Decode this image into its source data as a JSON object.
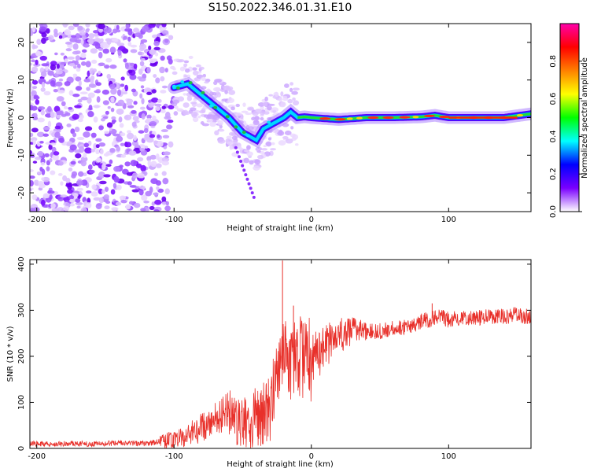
{
  "figure": {
    "title": "S150.2022.346.01.31.E10"
  },
  "chart_data": [
    {
      "type": "heatmap",
      "panel": "spectrogram",
      "xlabel": "Height of straight line (km)",
      "ylabel": "Frequency (Hz)",
      "xlim": [
        -205,
        160
      ],
      "ylim": [
        -25,
        25
      ],
      "xticks": [
        -200,
        -100,
        0,
        100
      ],
      "yticks": [
        -20,
        -10,
        0,
        10,
        20
      ],
      "ridge_x": [
        -100,
        -90,
        -80,
        -70,
        -60,
        -50,
        -45,
        -40,
        -35,
        -30,
        -25,
        -20,
        -15,
        -10,
        -5,
        0,
        20,
        40,
        60,
        80,
        90,
        100,
        120,
        140,
        160
      ],
      "ridge_freq": [
        8,
        9,
        6,
        3,
        0,
        -4,
        -5,
        -6,
        -3,
        -2,
        -1,
        0,
        1.5,
        0,
        0.2,
        0,
        -0.5,
        0,
        0,
        0.2,
        0.6,
        0,
        0,
        0,
        1
      ],
      "colorbar": {
        "label": "Normalized spectral amplitude",
        "range": [
          0,
          1
        ],
        "ticks": [
          0.0,
          0.2,
          0.4,
          0.6,
          0.8
        ],
        "colors": [
          "#ffffff",
          "#7a00ff",
          "#0000ff",
          "#00ffff",
          "#00ff00",
          "#ffff00",
          "#ff8000",
          "#ff0000",
          "#ff00aa"
        ]
      }
    },
    {
      "type": "line",
      "panel": "snr",
      "xlabel": "Height of straight line (km)",
      "ylabel": "SNR (10 * v/v)",
      "xlim": [
        -205,
        160
      ],
      "ylim": [
        0,
        410
      ],
      "xticks": [
        -200,
        -100,
        0,
        100
      ],
      "yticks": [
        0,
        100,
        200,
        300,
        400
      ],
      "line_color": "#e8302a",
      "series": [
        {
          "x": [
            -205,
            -180,
            -160,
            -140,
            -120,
            -100,
            -90,
            -80,
            -70,
            -60,
            -55,
            -50,
            -45,
            -40,
            -35,
            -30,
            -25,
            -22,
            -20,
            -15,
            -10,
            -5,
            0,
            10,
            20,
            30,
            40,
            50,
            60,
            70,
            80,
            90,
            100,
            110,
            120,
            130,
            140,
            150,
            160
          ],
          "y": [
            10,
            10,
            10,
            12,
            10,
            20,
            30,
            45,
            65,
            80,
            60,
            55,
            50,
            70,
            75,
            90,
            160,
            170,
            210,
            190,
            200,
            190,
            190,
            225,
            245,
            255,
            255,
            255,
            260,
            265,
            275,
            285,
            280,
            285,
            285,
            285,
            285,
            290,
            285
          ]
        }
      ],
      "spikes": [
        {
          "x": -21,
          "y": 408
        },
        {
          "x": -13,
          "y": 310
        },
        {
          "x": 88,
          "y": 315
        }
      ]
    }
  ]
}
